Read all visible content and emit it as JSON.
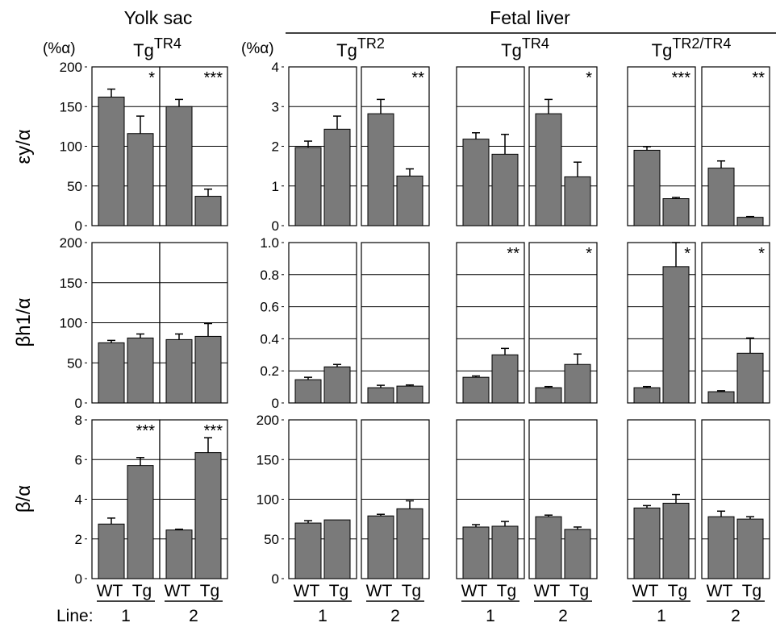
{
  "figure": {
    "group_titles": [
      "Yolk sac",
      "Fetal liver"
    ],
    "unit_label": "(%α)",
    "line_prefix": "Line:",
    "x_categories": [
      "WT",
      "Tg"
    ],
    "row_labels": [
      "εy/α",
      "βh1/α",
      "β/α"
    ],
    "columns": [
      {
        "base": "Tg",
        "sup": "TR4"
      },
      {
        "base": "Tg",
        "sup": "TR2"
      },
      {
        "base": "Tg",
        "sup": "TR4"
      },
      {
        "base": "Tg",
        "sup": "TR2/TR4"
      }
    ],
    "bar_color": "#7a7a7a"
  },
  "chart_data": {
    "type": "bar",
    "categories": [
      "WT",
      "Tg"
    ],
    "rows": [
      {
        "ylabel": "εy/α",
        "axes": [
          {
            "ylim": [
              0,
              200
            ],
            "ticks": [
              "0",
              "50",
              "100",
              "150",
              "200"
            ]
          },
          {
            "ylim": [
              0,
              4
            ],
            "ticks": [
              "0",
              "1",
              "2",
              "3",
              "4"
            ]
          },
          {
            "ylim": [
              0,
              4
            ],
            "ticks": []
          },
          {
            "ylim": [
              0,
              4
            ],
            "ticks": []
          }
        ]
      },
      {
        "ylabel": "βh1/α",
        "axes": [
          {
            "ylim": [
              0,
              200
            ],
            "ticks": [
              "0",
              "50",
              "100",
              "150",
              "200"
            ]
          },
          {
            "ylim": [
              0,
              1.0
            ],
            "ticks": [
              "0",
              "0.2",
              "0.4",
              "0.6",
              "0.8",
              "1.0"
            ]
          },
          {
            "ylim": [
              0,
              1.0
            ],
            "ticks": []
          },
          {
            "ylim": [
              0,
              1.0
            ],
            "ticks": []
          }
        ]
      },
      {
        "ylabel": "β/α",
        "axes": [
          {
            "ylim": [
              0,
              8
            ],
            "ticks": [
              "0",
              "2",
              "4",
              "6",
              "8"
            ]
          },
          {
            "ylim": [
              0,
              200
            ],
            "ticks": [
              "0",
              "50",
              "100",
              "150",
              "200"
            ]
          },
          {
            "ylim": [
              0,
              200
            ],
            "ticks": []
          },
          {
            "ylim": [
              0,
              200
            ],
            "ticks": []
          }
        ]
      }
    ],
    "panels": [
      {
        "row": 0,
        "col": 0,
        "line": "1",
        "values": [
          162,
          116
        ],
        "errors": [
          10,
          22
        ],
        "sig": "*"
      },
      {
        "row": 0,
        "col": 0,
        "line": "2",
        "values": [
          150,
          37
        ],
        "errors": [
          9,
          9
        ],
        "sig": "***"
      },
      {
        "row": 0,
        "col": 1,
        "line": "1",
        "values": [
          1.97,
          2.43
        ],
        "errors": [
          0.16,
          0.33
        ],
        "sig": ""
      },
      {
        "row": 0,
        "col": 1,
        "line": "2",
        "values": [
          2.82,
          1.25
        ],
        "errors": [
          0.36,
          0.18
        ],
        "sig": "**"
      },
      {
        "row": 0,
        "col": 2,
        "line": "1",
        "values": [
          2.18,
          1.8
        ],
        "errors": [
          0.16,
          0.5
        ],
        "sig": ""
      },
      {
        "row": 0,
        "col": 2,
        "line": "2",
        "values": [
          2.82,
          1.23
        ],
        "errors": [
          0.36,
          0.37
        ],
        "sig": "*"
      },
      {
        "row": 0,
        "col": 3,
        "line": "1",
        "values": [
          1.9,
          0.68
        ],
        "errors": [
          0.09,
          0.03
        ],
        "sig": "***"
      },
      {
        "row": 0,
        "col": 3,
        "line": "2",
        "values": [
          1.45,
          0.21
        ],
        "errors": [
          0.18,
          0.02
        ],
        "sig": "**"
      },
      {
        "row": 1,
        "col": 0,
        "line": "1",
        "values": [
          75,
          81
        ],
        "errors": [
          3,
          5
        ],
        "sig": ""
      },
      {
        "row": 1,
        "col": 0,
        "line": "2",
        "values": [
          79,
          83
        ],
        "errors": [
          7,
          16
        ],
        "sig": ""
      },
      {
        "row": 1,
        "col": 1,
        "line": "1",
        "values": [
          0.145,
          0.225
        ],
        "errors": [
          0.015,
          0.015
        ],
        "sig": ""
      },
      {
        "row": 1,
        "col": 1,
        "line": "2",
        "values": [
          0.095,
          0.105
        ],
        "errors": [
          0.015,
          0.007
        ],
        "sig": ""
      },
      {
        "row": 1,
        "col": 2,
        "line": "1",
        "values": [
          0.16,
          0.3
        ],
        "errors": [
          0.008,
          0.04
        ],
        "sig": "**"
      },
      {
        "row": 1,
        "col": 2,
        "line": "2",
        "values": [
          0.095,
          0.24
        ],
        "errors": [
          0.007,
          0.065
        ],
        "sig": "*"
      },
      {
        "row": 1,
        "col": 3,
        "line": "1",
        "values": [
          0.095,
          0.85
        ],
        "errors": [
          0.007,
          0.15
        ],
        "sig": "*"
      },
      {
        "row": 1,
        "col": 3,
        "line": "2",
        "values": [
          0.07,
          0.31
        ],
        "errors": [
          0.006,
          0.095
        ],
        "sig": "*"
      },
      {
        "row": 2,
        "col": 0,
        "line": "1",
        "values": [
          2.75,
          5.7
        ],
        "errors": [
          0.3,
          0.4
        ],
        "sig": "***"
      },
      {
        "row": 2,
        "col": 0,
        "line": "2",
        "values": [
          2.45,
          6.35
        ],
        "errors": [
          0.04,
          0.75
        ],
        "sig": "***"
      },
      {
        "row": 2,
        "col": 1,
        "line": "1",
        "values": [
          70,
          74
        ],
        "errors": [
          3,
          0
        ],
        "sig": ""
      },
      {
        "row": 2,
        "col": 1,
        "line": "2",
        "values": [
          79,
          88
        ],
        "errors": [
          2,
          10
        ],
        "sig": ""
      },
      {
        "row": 2,
        "col": 2,
        "line": "1",
        "values": [
          65,
          66
        ],
        "errors": [
          3,
          6
        ],
        "sig": ""
      },
      {
        "row": 2,
        "col": 2,
        "line": "2",
        "values": [
          78,
          62
        ],
        "errors": [
          2,
          3
        ],
        "sig": ""
      },
      {
        "row": 2,
        "col": 3,
        "line": "1",
        "values": [
          89,
          95
        ],
        "errors": [
          3,
          11
        ],
        "sig": ""
      },
      {
        "row": 2,
        "col": 3,
        "line": "2",
        "values": [
          78,
          75
        ],
        "errors": [
          7,
          3
        ],
        "sig": ""
      }
    ]
  }
}
